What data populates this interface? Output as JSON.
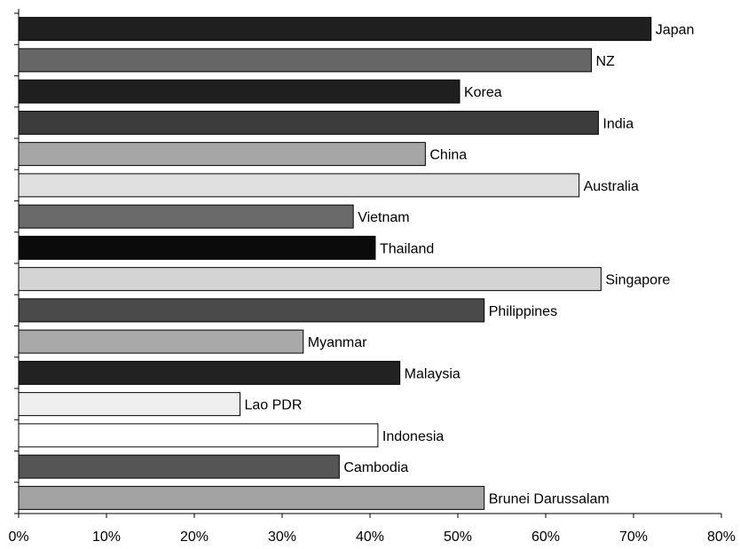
{
  "chart_data": {
    "type": "bar",
    "orientation": "horizontal",
    "categories": [
      "Japan",
      "NZ",
      "Korea",
      "India",
      "China",
      "Australia",
      "Vietnam",
      "Thailand",
      "Singapore",
      "Philippines",
      "Myanmar",
      "Malaysia",
      "Lao PDR",
      "Indonesia",
      "Cambodia",
      "Brunei Darussalam"
    ],
    "values": [
      72,
      65.2,
      50.2,
      66,
      46.3,
      63.8,
      38.1,
      40.6,
      66.3,
      53,
      32.4,
      43.4,
      25.2,
      40.9,
      36.5,
      53
    ],
    "bar_colors": [
      "#1f1f1f",
      "#666666",
      "#1f1f1f",
      "#3c3c3c",
      "#a6a6a6",
      "#e0e0e0",
      "#6a6a6a",
      "#0b0b0b",
      "#d4d4d4",
      "#4a4a4a",
      "#a9a9a9",
      "#222222",
      "#efefef",
      "#ffffff",
      "#555555",
      "#a3a3a3"
    ],
    "xlim": [
      0,
      80
    ],
    "xticks": [
      0,
      10,
      20,
      30,
      40,
      50,
      60,
      70,
      80
    ],
    "xtick_labels": [
      "0%",
      "10%",
      "20%",
      "30%",
      "40%",
      "50%",
      "60%",
      "70%",
      "80%"
    ],
    "title": "",
    "xlabel": "",
    "ylabel": "",
    "grid": false,
    "legend": "none"
  }
}
